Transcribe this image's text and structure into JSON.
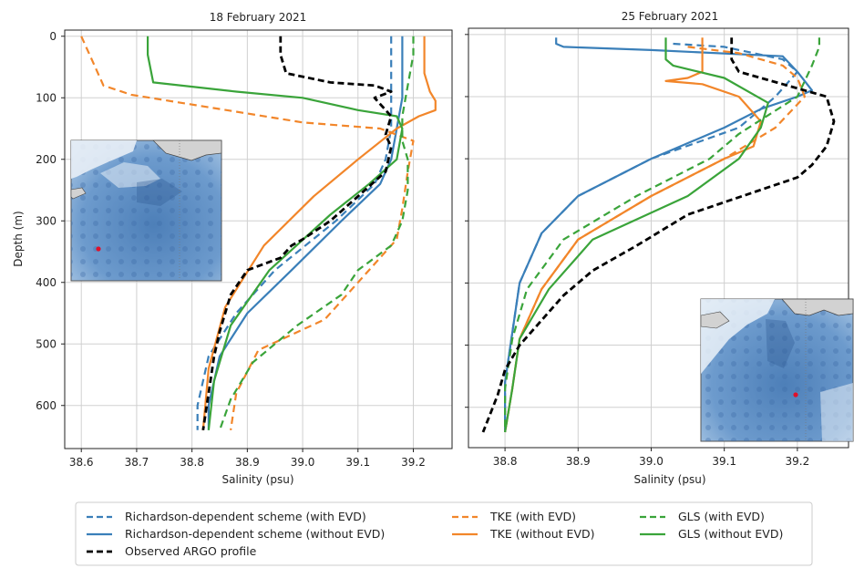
{
  "colors": {
    "richardson": "#3a7fb9",
    "tke": "#f2862a",
    "gls": "#3aa43a",
    "argo": "#000000",
    "grid": "#d0d0d0",
    "inset_water": "#5f8fc4",
    "inset_land": "#d2d2d2",
    "inset_marker": "#e0102a"
  },
  "chart_data": [
    {
      "type": "line",
      "title": "18 February 2021",
      "xlabel": "Salinity (psu)",
      "ylabel": "Depth (m)",
      "xlim": [
        38.57,
        39.27
      ],
      "ylim": [
        670,
        -10
      ],
      "y_inverted": true,
      "xticks": [
        "38.6",
        "38.7",
        "38.8",
        "38.9",
        "39.0",
        "39.1",
        "39.2"
      ],
      "yticks": [
        "0",
        "100",
        "200",
        "300",
        "400",
        "500",
        "600"
      ],
      "grid": true,
      "inset_map": true,
      "series": [
        {
          "key": "rich_evd",
          "dashed": true,
          "color_key": "richardson",
          "x": [
            39.16,
            39.16,
            39.16,
            39.15,
            39.13,
            39.06,
            38.95,
            38.88,
            38.83,
            38.81,
            38.81
          ],
          "y": [
            0,
            100,
            150,
            200,
            240,
            300,
            380,
            450,
            520,
            600,
            640
          ]
        },
        {
          "key": "rich",
          "dashed": false,
          "color_key": "richardson",
          "x": [
            39.18,
            39.18,
            39.17,
            39.16,
            39.14,
            39.07,
            38.98,
            38.9,
            38.85,
            38.83,
            38.83
          ],
          "y": [
            0,
            100,
            150,
            200,
            240,
            300,
            380,
            450,
            520,
            600,
            640
          ]
        },
        {
          "key": "tke_evd",
          "dashed": true,
          "color_key": "tke",
          "x": [
            38.6,
            38.62,
            38.64,
            38.69,
            39.0,
            39.14,
            39.2,
            39.19,
            39.18,
            39.17,
            39.15,
            39.1,
            39.04,
            38.92,
            38.88,
            38.87
          ],
          "y": [
            0,
            40,
            80,
            95,
            140,
            150,
            170,
            220,
            280,
            330,
            350,
            400,
            460,
            510,
            580,
            640
          ]
        },
        {
          "key": "tke",
          "dashed": false,
          "color_key": "tke",
          "x": [
            39.22,
            39.22,
            39.23,
            39.24,
            39.24,
            39.21,
            39.17,
            39.1,
            39.02,
            38.93,
            38.86,
            38.83,
            38.82
          ],
          "y": [
            0,
            60,
            90,
            105,
            120,
            130,
            150,
            200,
            260,
            340,
            440,
            540,
            640
          ]
        },
        {
          "key": "gls_evd",
          "dashed": true,
          "color_key": "gls",
          "x": [
            39.2,
            39.2,
            39.19,
            39.18,
            39.18,
            39.19,
            39.19,
            39.18,
            39.16,
            39.1,
            39.07,
            38.99,
            38.91,
            38.87,
            38.85
          ],
          "y": [
            0,
            30,
            80,
            130,
            170,
            200,
            250,
            300,
            340,
            380,
            420,
            470,
            530,
            590,
            640
          ]
        },
        {
          "key": "gls",
          "dashed": false,
          "color_key": "gls",
          "x": [
            38.72,
            38.72,
            38.73,
            38.88,
            39.0,
            39.1,
            39.17,
            39.18,
            39.17,
            39.12,
            39.05,
            38.94,
            38.87,
            38.84,
            38.83
          ],
          "y": [
            0,
            30,
            75,
            90,
            100,
            120,
            130,
            150,
            200,
            240,
            290,
            380,
            470,
            560,
            640
          ]
        },
        {
          "key": "argo",
          "dashed": true,
          "color_key": "argo",
          "x": [
            38.96,
            38.96,
            38.97,
            39.05,
            39.13,
            39.16,
            39.13,
            39.16,
            39.15,
            39.16,
            39.15,
            39.1,
            39.05,
            39.0,
            38.98,
            38.96,
            38.9,
            38.87,
            38.85,
            38.84,
            38.83,
            38.82
          ],
          "y": [
            0,
            30,
            60,
            75,
            80,
            90,
            100,
            130,
            160,
            180,
            220,
            260,
            300,
            330,
            340,
            360,
            380,
            420,
            480,
            520,
            580,
            640
          ]
        }
      ]
    },
    {
      "type": "line",
      "title": "25 February 2021",
      "xlabel": "Salinity (psu)",
      "ylabel": "",
      "xlim": [
        38.75,
        39.27
      ],
      "ylim": [
        665,
        -10
      ],
      "y_inverted": true,
      "xticks": [
        "38.8",
        "38.9",
        "39.0",
        "39.1",
        "39.2"
      ],
      "yticks": [],
      "grid": true,
      "inset_map": true,
      "series": [
        {
          "key": "rich_evd",
          "dashed": true,
          "color_key": "richardson",
          "x": [
            39.03,
            39.1,
            39.18,
            39.2,
            39.17,
            39.12,
            39.0,
            38.9,
            38.85,
            38.82,
            38.81,
            38.8,
            38.8
          ],
          "y": [
            15,
            20,
            40,
            60,
            100,
            150,
            200,
            260,
            320,
            400,
            480,
            560,
            640
          ]
        },
        {
          "key": "rich",
          "dashed": false,
          "color_key": "richardson",
          "x": [
            38.87,
            38.87,
            38.88,
            39.0,
            39.18,
            39.2,
            39.22,
            39.2,
            39.15,
            39.1,
            39.0,
            38.9,
            38.85,
            38.82,
            38.81,
            38.8,
            38.8
          ],
          "y": [
            5,
            15,
            20,
            25,
            35,
            60,
            90,
            100,
            120,
            150,
            200,
            260,
            320,
            400,
            480,
            560,
            640
          ]
        },
        {
          "key": "tke_evd",
          "dashed": true,
          "color_key": "tke",
          "x": [
            39.05,
            39.12,
            39.18,
            39.2,
            39.21,
            39.17,
            39.1,
            39.0,
            38.9,
            38.85,
            38.82,
            38.81,
            38.8
          ],
          "y": [
            20,
            30,
            50,
            70,
            100,
            150,
            200,
            260,
            330,
            410,
            490,
            570,
            640
          ]
        },
        {
          "key": "tke",
          "dashed": false,
          "color_key": "tke",
          "x": [
            39.07,
            39.07,
            39.05,
            39.02,
            39.07,
            39.12,
            39.15,
            39.14,
            39.1,
            39.0,
            38.9,
            38.85,
            38.82,
            38.81,
            38.8
          ],
          "y": [
            5,
            60,
            70,
            75,
            80,
            100,
            140,
            180,
            200,
            260,
            330,
            410,
            490,
            570,
            640
          ]
        },
        {
          "key": "gls_evd",
          "dashed": true,
          "color_key": "gls",
          "x": [
            39.23,
            39.23,
            39.22,
            39.2,
            39.16,
            39.12,
            39.08,
            38.98,
            38.88,
            38.83,
            38.81,
            38.8,
            38.8
          ],
          "y": [
            5,
            20,
            50,
            100,
            130,
            160,
            200,
            260,
            330,
            410,
            490,
            570,
            640
          ]
        },
        {
          "key": "gls",
          "dashed": false,
          "color_key": "gls",
          "x": [
            39.02,
            39.02,
            39.03,
            39.1,
            39.16,
            39.15,
            39.12,
            39.05,
            38.92,
            38.86,
            38.82,
            38.81,
            38.8
          ],
          "y": [
            5,
            40,
            50,
            70,
            110,
            150,
            200,
            260,
            330,
            410,
            490,
            570,
            640
          ]
        },
        {
          "key": "argo",
          "dashed": true,
          "color_key": "argo",
          "x": [
            39.11,
            39.11,
            39.12,
            39.18,
            39.24,
            39.25,
            39.24,
            39.22,
            39.2,
            39.15,
            39.05,
            38.98,
            38.92,
            38.88,
            38.85,
            38.82,
            38.8,
            38.79,
            38.78,
            38.77
          ],
          "y": [
            5,
            40,
            60,
            80,
            100,
            140,
            180,
            210,
            230,
            250,
            290,
            340,
            380,
            420,
            460,
            500,
            540,
            580,
            610,
            640
          ]
        }
      ]
    }
  ],
  "legend": {
    "columns": [
      [
        {
          "label": "Richardson-dependent scheme (with EVD)",
          "series_key": "rich_evd"
        },
        {
          "label": "Richardson-dependent scheme (without EVD)",
          "series_key": "rich"
        },
        {
          "label": "Observed ARGO profile",
          "series_key": "argo"
        }
      ],
      [
        {
          "label": "TKE (with EVD)",
          "series_key": "tke_evd"
        },
        {
          "label": "TKE (without EVD)",
          "series_key": "tke"
        }
      ],
      [
        {
          "label": "GLS (with EVD)",
          "series_key": "gls_evd"
        },
        {
          "label": "GLS (without EVD)",
          "series_key": "gls"
        }
      ]
    ]
  }
}
